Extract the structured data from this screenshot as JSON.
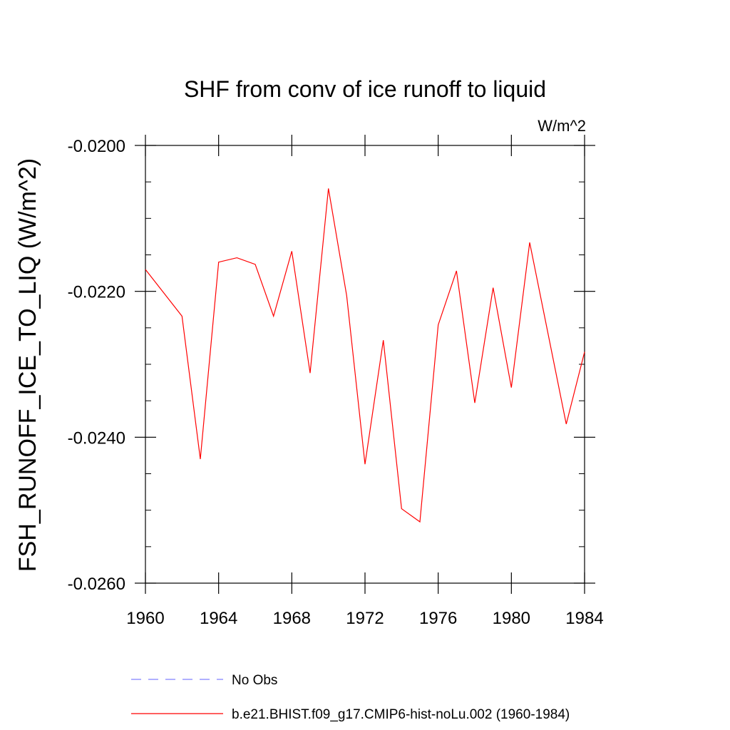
{
  "chart_data": {
    "type": "line",
    "title": "SHF from conv of ice runoff to liquid",
    "units": "W/m^2",
    "ylabel": "FSH_RUNOFF_ICE_TO_LIQ  (W/m^2)",
    "xlabel": "",
    "xlim": [
      1960,
      1984
    ],
    "ylim": [
      -0.026,
      -0.02
    ],
    "x_ticks": [
      1960,
      1964,
      1968,
      1972,
      1976,
      1980,
      1984
    ],
    "x_tick_labels": [
      "1960",
      "1964",
      "1968",
      "1972",
      "1976",
      "1980",
      "1984"
    ],
    "y_ticks": [
      -0.026,
      -0.024,
      -0.022,
      -0.02
    ],
    "y_tick_labels": [
      "-0.0260",
      "-0.0240",
      "-0.0220",
      "-0.0200"
    ],
    "grid": false,
    "legend_position": "bottom",
    "series": [
      {
        "name": "No Obs",
        "color": "#8080ff",
        "style": "dashed",
        "x": [],
        "y": []
      },
      {
        "name": "b.e21.BHIST.f09_g17.CMIP6-hist-noLu.002 (1960-1984)",
        "color": "#ff0000",
        "style": "solid",
        "x": [
          1960,
          1962,
          1963,
          1964,
          1965,
          1966,
          1967,
          1968,
          1969,
          1970,
          1971,
          1972,
          1973,
          1974,
          1975,
          1976,
          1977,
          1978,
          1979,
          1980,
          1981,
          1983,
          1984
        ],
        "y": [
          -0.0217,
          -0.02234,
          -0.0243,
          -0.0216,
          -0.02154,
          -0.02163,
          -0.02234,
          -0.02145,
          -0.02312,
          -0.02059,
          -0.02206,
          -0.02437,
          -0.02267,
          -0.02498,
          -0.02516,
          -0.02246,
          -0.02172,
          -0.02353,
          -0.02195,
          -0.02332,
          -0.02133,
          -0.02382,
          -0.02283
        ]
      }
    ]
  }
}
